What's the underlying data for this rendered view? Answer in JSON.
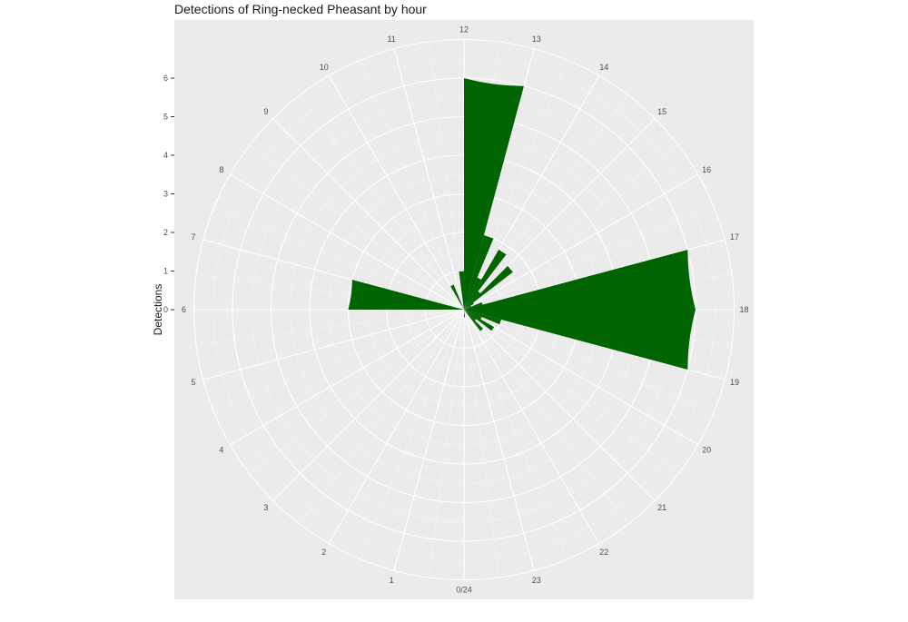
{
  "chart_data": {
    "type": "bar",
    "coord": "polar",
    "title": "Detections of Ring-necked Pheasant by hour",
    "xlabel": "",
    "ylabel": "Detections",
    "categories": [
      "0/24",
      "1",
      "2",
      "3",
      "4",
      "5",
      "6",
      "7",
      "8",
      "9",
      "10",
      "11",
      "12",
      "13",
      "14",
      "15",
      "16",
      "17",
      "18",
      "19",
      "20",
      "21",
      "22",
      "23"
    ],
    "values": [
      0,
      0,
      0,
      0,
      0,
      0,
      0,
      0,
      0,
      0,
      0,
      0,
      0,
      0,
      0,
      0,
      0,
      0,
      0,
      0,
      0,
      0,
      0,
      0
    ],
    "bars": [
      {
        "start": 12.0,
        "end": 13.0,
        "value": 6.0
      },
      {
        "start": 13.0,
        "end": 13.5,
        "value": 2.0
      },
      {
        "start": 13.5,
        "end": 14.0,
        "value": 0.9
      },
      {
        "start": 14.0,
        "end": 14.5,
        "value": 1.8
      },
      {
        "start": 14.5,
        "end": 15.0,
        "value": 0.6
      },
      {
        "start": 15.0,
        "end": 15.5,
        "value": 1.6
      },
      {
        "start": 15.5,
        "end": 16.0,
        "value": 0.3
      },
      {
        "start": 16.0,
        "end": 16.5,
        "value": 0.2
      },
      {
        "start": 16.5,
        "end": 17.0,
        "value": 0.5
      },
      {
        "start": 17.0,
        "end": 18.0,
        "value": 6.0
      },
      {
        "start": 18.0,
        "end": 19.0,
        "value": 6.0
      },
      {
        "start": 19.0,
        "end": 19.5,
        "value": 1.0
      },
      {
        "start": 19.5,
        "end": 20.0,
        "value": 0.5
      },
      {
        "start": 20.0,
        "end": 20.5,
        "value": 0.9
      },
      {
        "start": 20.5,
        "end": 21.0,
        "value": 0.4
      },
      {
        "start": 21.0,
        "end": 21.5,
        "value": 0.7
      },
      {
        "start": 23.5,
        "end": 24.0,
        "value": 0.2
      },
      {
        "start": 6.0,
        "end": 7.0,
        "value": 3.0
      },
      {
        "start": 10.0,
        "end": 10.5,
        "value": 0.7
      },
      {
        "start": 11.5,
        "end": 12.0,
        "value": 1.0
      }
    ],
    "x_ticks": [
      "0/24",
      "1",
      "2",
      "3",
      "4",
      "5",
      "6",
      "7",
      "8",
      "9",
      "10",
      "11",
      "12",
      "13",
      "14",
      "15",
      "16",
      "17",
      "18",
      "19",
      "20",
      "21",
      "22",
      "23"
    ],
    "y_ticks": [
      "0",
      "1",
      "2",
      "3",
      "4",
      "5",
      "6"
    ],
    "ylim": [
      0,
      7
    ],
    "bar_color": "#006400",
    "panel_color": "#EBEBEB",
    "grid": true,
    "legend": "none"
  }
}
